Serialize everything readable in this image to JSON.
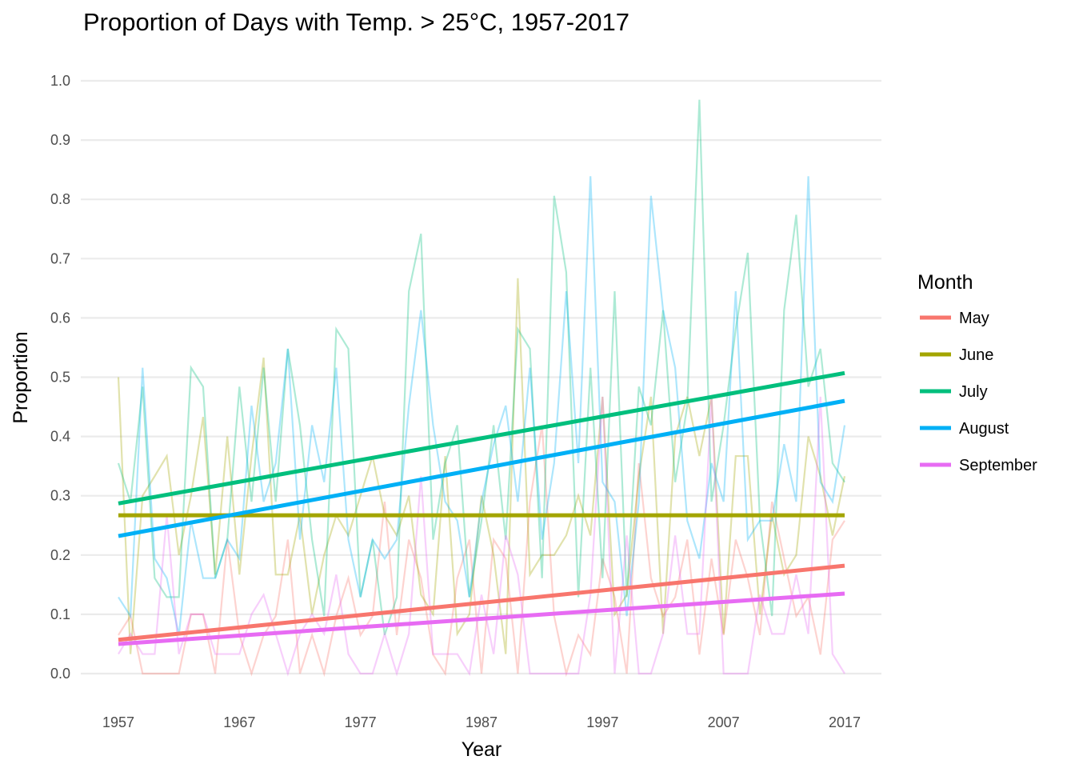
{
  "chart_data": {
    "type": "line",
    "title": "Proportion of Days with Temp. > 25°C, 1957-2017",
    "xlabel": "Year",
    "ylabel": "Proportion",
    "xlim": [
      1957,
      2017
    ],
    "ylim": [
      0,
      1
    ],
    "x_ticks": [
      "1957",
      "1967",
      "1977",
      "1987",
      "1997",
      "2007",
      "2017"
    ],
    "y_ticks": [
      "0.0",
      "0.1",
      "0.2",
      "0.3",
      "0.4",
      "0.5",
      "0.6",
      "0.7",
      "0.8",
      "0.9",
      "1.0"
    ],
    "grid": "horizontal",
    "legend_title": "Month",
    "legend_position": "right",
    "series": [
      {
        "name": "May",
        "color": "#F8766D",
        "trend": [
          0.057,
          0.182
        ],
        "values": [
          0.065,
          0.097,
          0.0,
          0.0,
          0.0,
          0.0,
          0.1,
          0.1,
          0.0,
          0.226,
          0.065,
          0.0,
          0.065,
          0.097,
          0.226,
          0.0,
          0.065,
          0.0,
          0.097,
          0.161,
          0.065,
          0.097,
          0.29,
          0.065,
          0.226,
          0.161,
          0.032,
          0.0,
          0.161,
          0.226,
          0.0,
          0.226,
          0.194,
          0.0,
          0.29,
          0.419,
          0.097,
          0.0,
          0.065,
          0.032,
          0.194,
          0.129,
          0.0,
          0.355,
          0.161,
          0.097,
          0.129,
          0.226,
          0.032,
          0.194,
          0.065,
          0.226,
          0.161,
          0.065,
          0.29,
          0.194,
          0.097,
          0.129,
          0.032,
          0.226,
          0.258
        ]
      },
      {
        "name": "June",
        "color": "#A3A500",
        "trend": [
          0.267,
          0.267
        ],
        "values": [
          0.5,
          0.033,
          0.3,
          0.333,
          0.367,
          0.2,
          0.3,
          0.433,
          0.167,
          0.4,
          0.167,
          0.367,
          0.533,
          0.167,
          0.167,
          0.267,
          0.1,
          0.2,
          0.267,
          0.233,
          0.3,
          0.367,
          0.267,
          0.233,
          0.3,
          0.133,
          0.1,
          0.367,
          0.067,
          0.1,
          0.3,
          0.2,
          0.033,
          0.667,
          0.167,
          0.2,
          0.2,
          0.233,
          0.3,
          0.233,
          0.467,
          0.1,
          0.133,
          0.333,
          0.467,
          0.067,
          0.4,
          0.467,
          0.367,
          0.467,
          0.067,
          0.367,
          0.367,
          0.1,
          0.267,
          0.167,
          0.2,
          0.4,
          0.333,
          0.233,
          0.333
        ]
      },
      {
        "name": "July",
        "color": "#00BF7D",
        "trend": [
          0.287,
          0.507
        ],
        "values": [
          0.355,
          0.29,
          0.484,
          0.161,
          0.129,
          0.129,
          0.516,
          0.484,
          0.161,
          0.226,
          0.484,
          0.29,
          0.516,
          0.29,
          0.548,
          0.419,
          0.226,
          0.097,
          0.581,
          0.548,
          0.129,
          0.226,
          0.065,
          0.129,
          0.645,
          0.742,
          0.226,
          0.355,
          0.419,
          0.129,
          0.258,
          0.419,
          0.226,
          0.581,
          0.548,
          0.161,
          0.806,
          0.677,
          0.129,
          0.516,
          0.161,
          0.645,
          0.129,
          0.484,
          0.419,
          0.613,
          0.323,
          0.452,
          0.968,
          0.29,
          0.419,
          0.581,
          0.71,
          0.258,
          0.097,
          0.613,
          0.774,
          0.484,
          0.548,
          0.355,
          0.323
        ]
      },
      {
        "name": "August",
        "color": "#00B0F6",
        "trend": [
          0.232,
          0.46
        ],
        "values": [
          0.129,
          0.097,
          0.516,
          0.194,
          0.161,
          0.065,
          0.258,
          0.161,
          0.161,
          0.226,
          0.194,
          0.452,
          0.29,
          0.355,
          0.548,
          0.226,
          0.419,
          0.323,
          0.516,
          0.226,
          0.129,
          0.226,
          0.194,
          0.226,
          0.452,
          0.613,
          0.419,
          0.29,
          0.258,
          0.129,
          0.29,
          0.387,
          0.452,
          0.29,
          0.516,
          0.226,
          0.355,
          0.645,
          0.355,
          0.839,
          0.323,
          0.29,
          0.097,
          0.29,
          0.806,
          0.613,
          0.516,
          0.258,
          0.194,
          0.355,
          0.29,
          0.645,
          0.226,
          0.258,
          0.258,
          0.387,
          0.29,
          0.839,
          0.323,
          0.29,
          0.419
        ]
      },
      {
        "name": "September",
        "color": "#E76BF3",
        "trend": [
          0.05,
          0.135
        ],
        "values": [
          0.033,
          0.067,
          0.033,
          0.033,
          0.267,
          0.033,
          0.1,
          0.1,
          0.033,
          0.033,
          0.033,
          0.1,
          0.133,
          0.067,
          0.0,
          0.067,
          0.1,
          0.067,
          0.167,
          0.033,
          0.0,
          0.0,
          0.067,
          0.0,
          0.067,
          0.333,
          0.033,
          0.033,
          0.033,
          0.0,
          0.133,
          0.033,
          0.233,
          0.167,
          0.0,
          0.0,
          0.0,
          0.0,
          0.0,
          0.133,
          0.467,
          0.0,
          0.233,
          0.0,
          0.0,
          0.067,
          0.233,
          0.067,
          0.067,
          0.467,
          0.0,
          0.0,
          0.0,
          0.133,
          0.067,
          0.067,
          0.167,
          0.067,
          0.467,
          0.033,
          0.0
        ]
      }
    ]
  }
}
